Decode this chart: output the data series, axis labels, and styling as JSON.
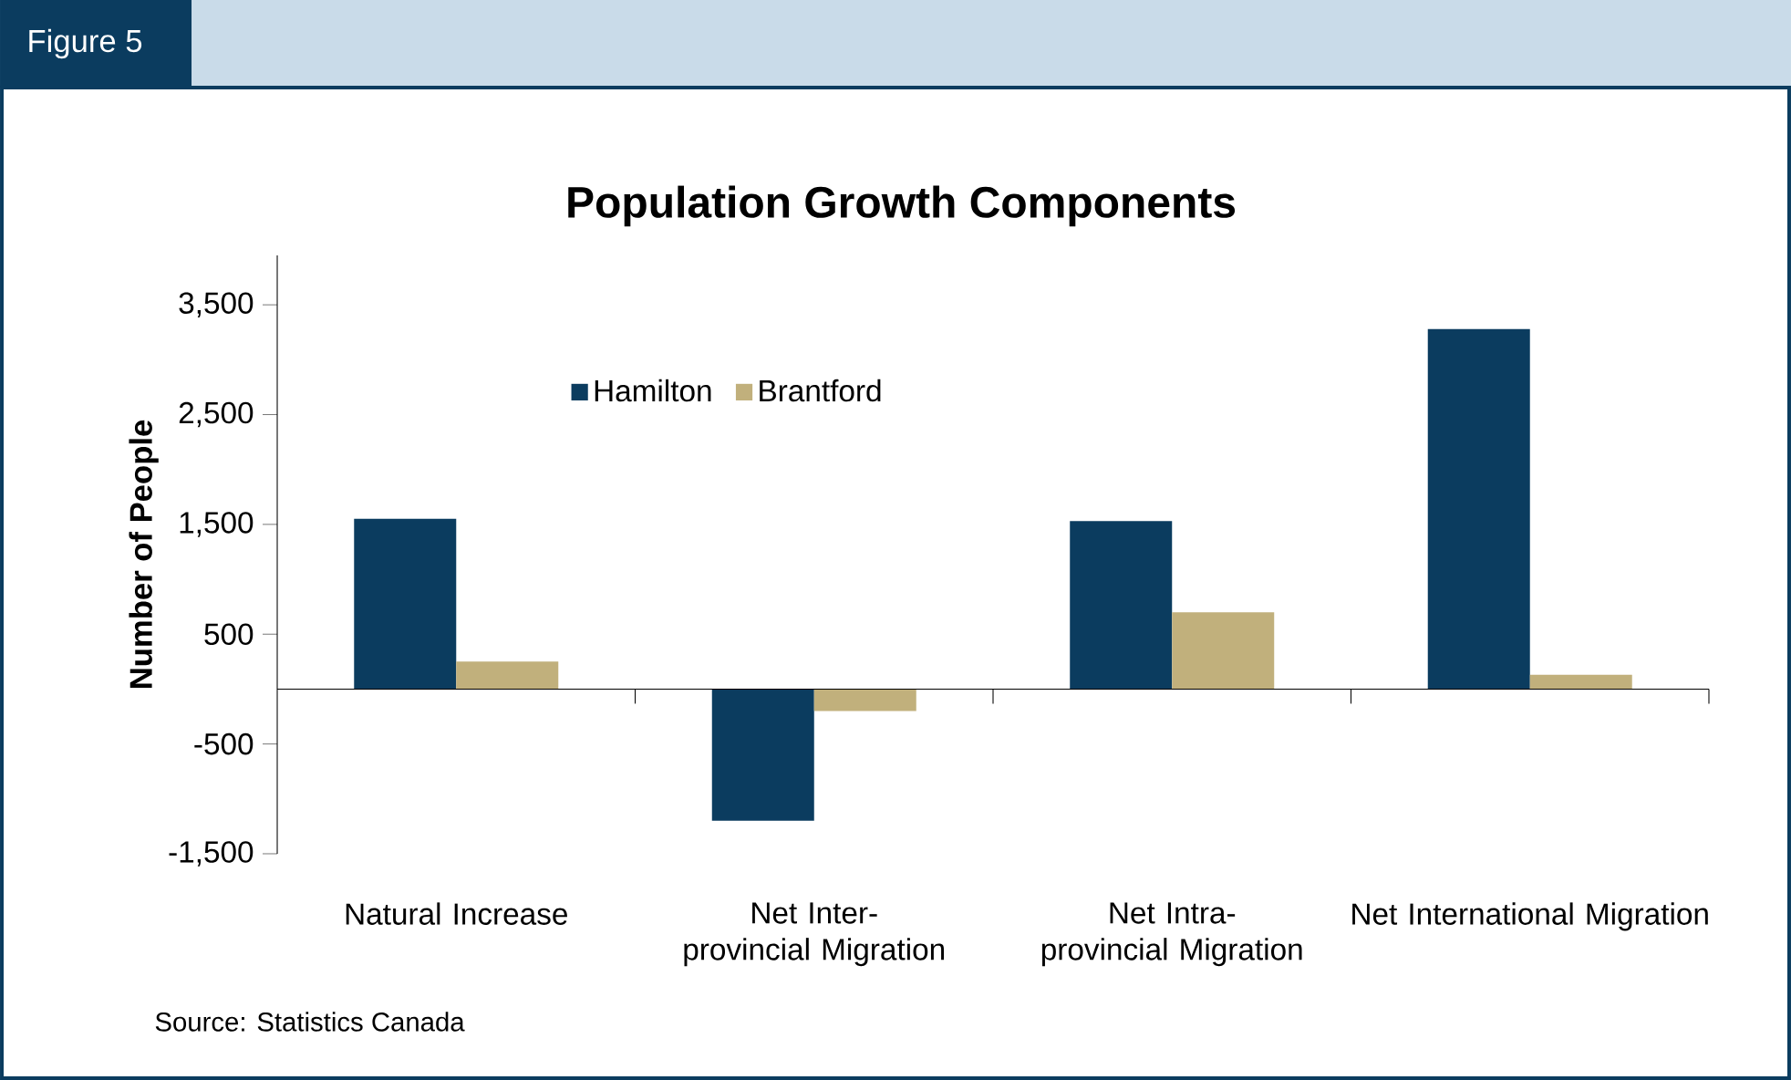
{
  "chart_data": {
    "type": "bar",
    "title": "Population Growth Components",
    "ylabel": "Number of People",
    "categories": [
      "Natural Increase",
      "Net Inter-provincial Migration",
      "Net Intra-provincial Migration",
      "Net International Migration"
    ],
    "series": [
      {
        "name": "Hamilton",
        "color": "#0b3c5f",
        "values": [
          1550,
          -1200,
          1530,
          3280
        ]
      },
      {
        "name": "Brantford",
        "color": "#c1b07c",
        "values": [
          250,
          -200,
          700,
          130
        ]
      }
    ],
    "ylim": [
      -1500,
      3950
    ],
    "yticks": [
      {
        "value": 3500,
        "label": "3,500"
      },
      {
        "value": 2500,
        "label": "2,500"
      },
      {
        "value": 1500,
        "label": "1,500"
      },
      {
        "value": 500,
        "label": "500"
      },
      {
        "value": -500,
        "label": "-500"
      },
      {
        "value": -1500,
        "label": "-1,500"
      }
    ],
    "legend": "top",
    "annotations": [
      "Figure 5",
      "Source: Statistics Canada"
    ]
  }
}
